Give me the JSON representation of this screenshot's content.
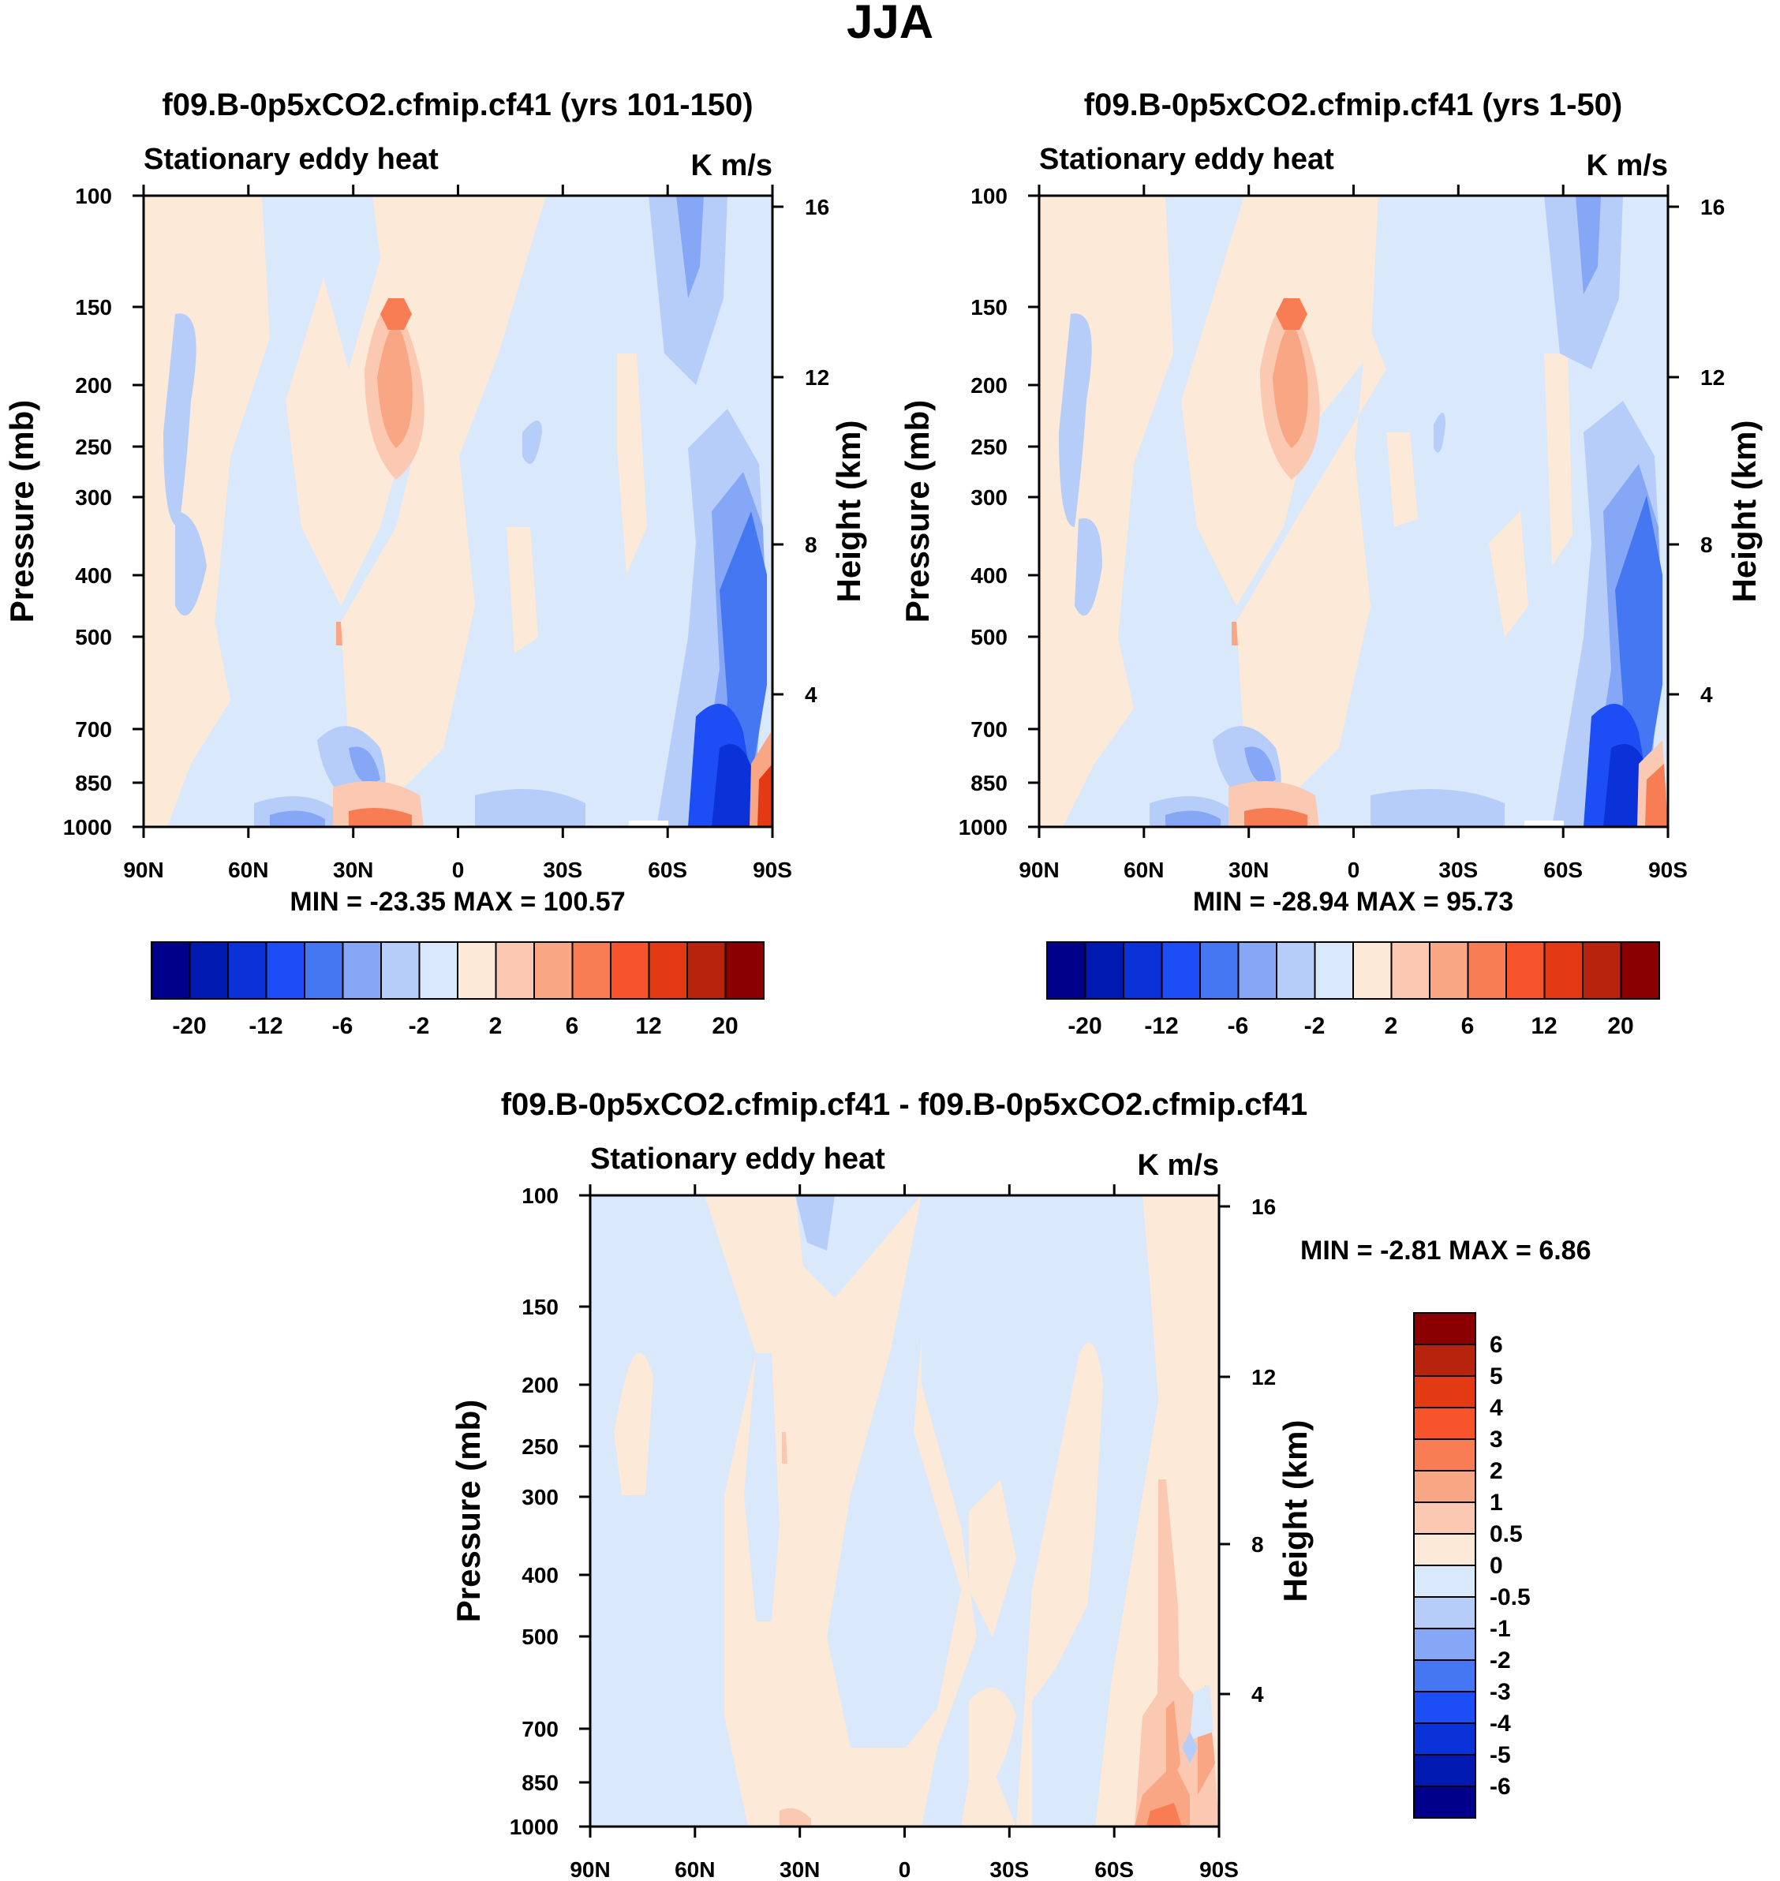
{
  "figure_title": "JJA",
  "colors": {
    "diverging": [
      "#00008a",
      "#0019b0",
      "#0a32d8",
      "#1c4df5",
      "#4577f2",
      "#85a7f5",
      "#b7cdf9",
      "#d9e8fb",
      "#fde9d8",
      "#fbc9b2",
      "#f9a684",
      "#f87d54",
      "#f7542b",
      "#e33a13",
      "#b8230d",
      "#8a0000"
    ]
  },
  "chart_data": [
    {
      "type": "heatmap",
      "title": "f09.B-0p5xCO2.cfmip.cf41 (yrs 101-150)",
      "subtitle_left": "Stationary eddy heat",
      "subtitle_right": "K m/s",
      "xlabel": "",
      "ylabel": "Pressure (mb)",
      "ylabel_right": "Height (km)",
      "x_ticks": [
        "90N",
        "60N",
        "30N",
        "0",
        "30S",
        "60S",
        "90S"
      ],
      "y_ticks": [
        "100",
        "150",
        "200",
        "250",
        "300",
        "400",
        "500",
        "700",
        "850",
        "1000"
      ],
      "y_ticks_right": [
        "16",
        "12",
        "8",
        "4"
      ],
      "stats": "MIN = -23.35  MAX = 100.57",
      "colorbar_labels": [
        "-20",
        "-12",
        "-6",
        "-2",
        "2",
        "6",
        "12",
        "20"
      ]
    },
    {
      "type": "heatmap",
      "title": "f09.B-0p5xCO2.cfmip.cf41 (yrs 1-50)",
      "subtitle_left": "Stationary eddy heat",
      "subtitle_right": "K m/s",
      "xlabel": "",
      "ylabel": "Pressure (mb)",
      "ylabel_right": "Height (km)",
      "x_ticks": [
        "90N",
        "60N",
        "30N",
        "0",
        "30S",
        "60S",
        "90S"
      ],
      "y_ticks": [
        "100",
        "150",
        "200",
        "250",
        "300",
        "400",
        "500",
        "700",
        "850",
        "1000"
      ],
      "y_ticks_right": [
        "16",
        "12",
        "8",
        "4"
      ],
      "stats": "MIN = -28.94  MAX =  95.73",
      "colorbar_labels": [
        "-20",
        "-12",
        "-6",
        "-2",
        "2",
        "6",
        "12",
        "20"
      ]
    },
    {
      "type": "heatmap",
      "title": "f09.B-0p5xCO2.cfmip.cf41 - f09.B-0p5xCO2.cfmip.cf41",
      "subtitle_left": "Stationary eddy heat",
      "subtitle_right": "K m/s",
      "xlabel": "",
      "ylabel": "Pressure (mb)",
      "ylabel_right": "Height (km)",
      "x_ticks": [
        "90N",
        "60N",
        "30N",
        "0",
        "30S",
        "60S",
        "90S"
      ],
      "y_ticks": [
        "100",
        "150",
        "200",
        "250",
        "300",
        "400",
        "500",
        "700",
        "850",
        "1000"
      ],
      "y_ticks_right": [
        "16",
        "12",
        "8",
        "4"
      ],
      "stats": "MIN =  -2.81  MAX =   6.86",
      "colorbar_labels": [
        "6",
        "5",
        "4",
        "3",
        "2",
        "1",
        "0.5",
        "0",
        "-0.5",
        "-1",
        "-2",
        "-3",
        "-4",
        "-5",
        "-6"
      ]
    }
  ]
}
